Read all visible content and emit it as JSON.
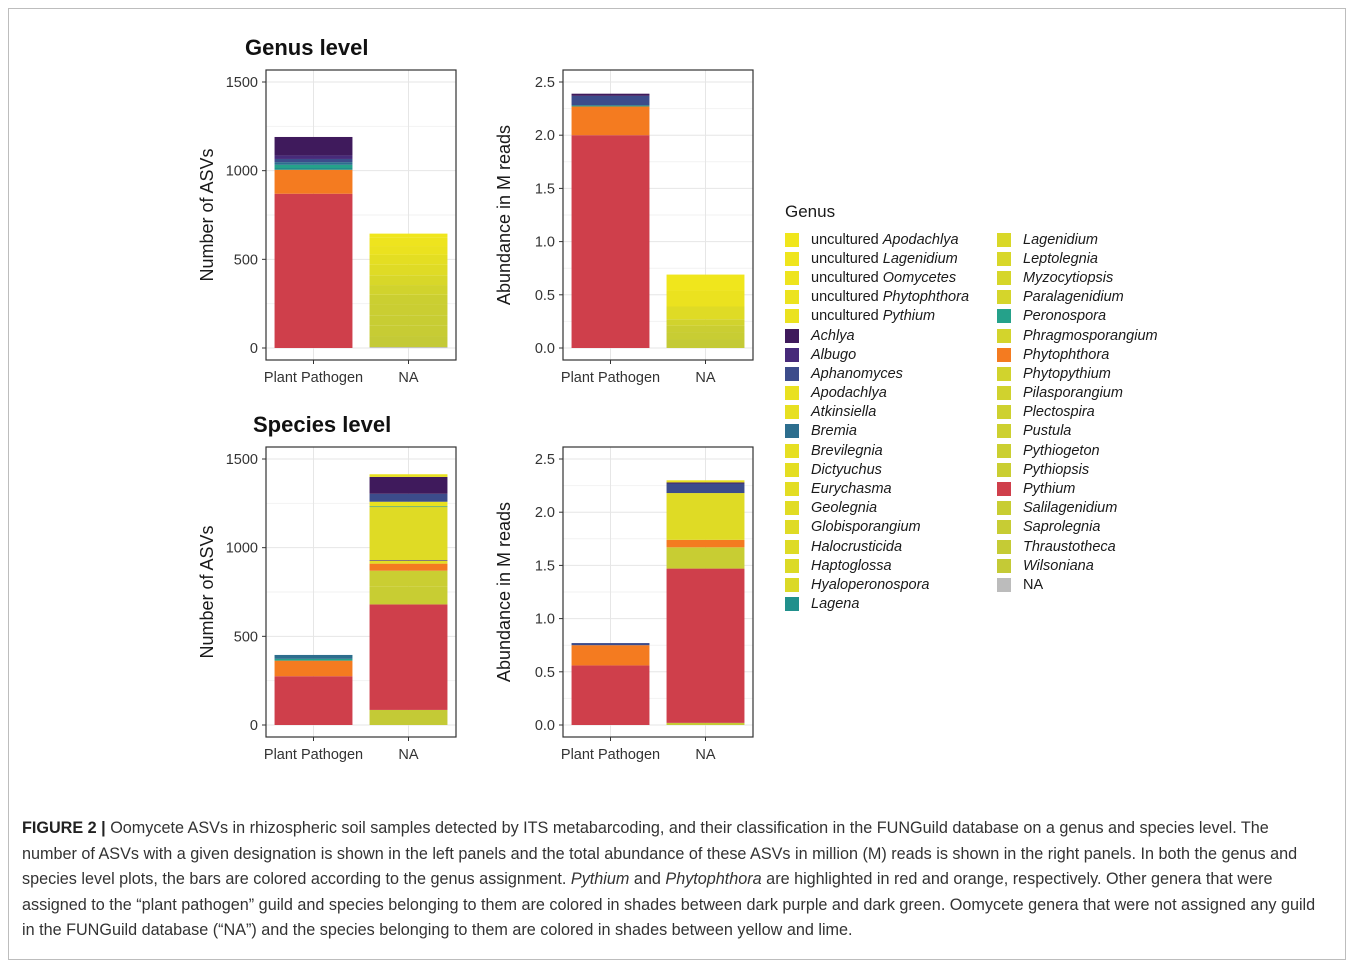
{
  "panels_titles": {
    "genus": "Genus level",
    "species": "Species level"
  },
  "colors": {
    "uncultured Apodachlya": "#f0e61c",
    "uncultured Lagenidium": "#efe51d",
    "uncultured Oomycetes": "#eee41e",
    "uncultured Phytophthora": "#ece31f",
    "uncultured Pythium": "#ebe21f",
    "Achlya": "#3f1a5c",
    "Albugo": "#472a7a",
    "Aphanomyces": "#3c4c8b",
    "Apodachlya": "#e9e120",
    "Atkinsiella": "#e7e021",
    "Bremia": "#2d6e8e",
    "Brevilegnia": "#e6df22",
    "Dictyuchus": "#e4de22",
    "Eurychasma": "#e3dd23",
    "Geolegnia": "#e1dc24",
    "Globisporangium": "#dfdb25",
    "Halocrusticida": "#dedb25",
    "Haptoglossa": "#dcda26",
    "Hyaloperonospora": "#dbd927",
    "Lagena": "#21908c",
    "Lagenidium": "#d9d828",
    "Leptolegnia": "#d8d729",
    "Myzocytiopsis": "#d6d62a",
    "Paralagenidium": "#d5d52b",
    "Peronospora": "#25a18a",
    "Phragmosporangium": "#d3d42c",
    "Phytophthora": "#f47b20",
    "Phytopythium": "#d1d32d",
    "Pilasporangium": "#d0d22e",
    "Plectospira": "#ced12f",
    "Pustula": "#cdd030",
    "Pythiogeton": "#cbcf31",
    "Pythiopsis": "#cace32",
    "Pythium": "#cf3f4b",
    "Salilagenidium": "#c8cd33",
    "Saprolegnia": "#c7cc34",
    "Thraustotheca": "#c5cb35",
    "Wilsoniana": "#c4ca36",
    "NA": "#bcbcbc"
  },
  "legend": {
    "title": "Genus",
    "col1": [
      {
        "key": "uncultured Apodachlya",
        "prefix": "uncultured ",
        "genus": "Apodachlya"
      },
      {
        "key": "uncultured Lagenidium",
        "prefix": "uncultured ",
        "genus": "Lagenidium"
      },
      {
        "key": "uncultured Oomycetes",
        "prefix": "uncultured ",
        "genus": "Oomycetes"
      },
      {
        "key": "uncultured Phytophthora",
        "prefix": "uncultured ",
        "genus": "Phytophthora"
      },
      {
        "key": "uncultured Pythium",
        "prefix": "uncultured ",
        "genus": "Pythium"
      },
      {
        "key": "Achlya",
        "prefix": "",
        "genus": "Achlya"
      },
      {
        "key": "Albugo",
        "prefix": "",
        "genus": "Albugo"
      },
      {
        "key": "Aphanomyces",
        "prefix": "",
        "genus": "Aphanomyces"
      },
      {
        "key": "Apodachlya",
        "prefix": "",
        "genus": "Apodachlya"
      },
      {
        "key": "Atkinsiella",
        "prefix": "",
        "genus": "Atkinsiella"
      },
      {
        "key": "Bremia",
        "prefix": "",
        "genus": "Bremia"
      },
      {
        "key": "Brevilegnia",
        "prefix": "",
        "genus": "Brevilegnia"
      },
      {
        "key": "Dictyuchus",
        "prefix": "",
        "genus": "Dictyuchus"
      },
      {
        "key": "Eurychasma",
        "prefix": "",
        "genus": "Eurychasma"
      },
      {
        "key": "Geolegnia",
        "prefix": "",
        "genus": "Geolegnia"
      },
      {
        "key": "Globisporangium",
        "prefix": "",
        "genus": "Globisporangium"
      },
      {
        "key": "Halocrusticida",
        "prefix": "",
        "genus": "Halocrusticida"
      },
      {
        "key": "Haptoglossa",
        "prefix": "",
        "genus": "Haptoglossa"
      },
      {
        "key": "Hyaloperonospora",
        "prefix": "",
        "genus": "Hyaloperonospora"
      },
      {
        "key": "Lagena",
        "prefix": "",
        "genus": "Lagena"
      }
    ],
    "col2": [
      {
        "key": "Lagenidium",
        "prefix": "",
        "genus": "Lagenidium"
      },
      {
        "key": "Leptolegnia",
        "prefix": "",
        "genus": "Leptolegnia"
      },
      {
        "key": "Myzocytiopsis",
        "prefix": "",
        "genus": "Myzocytiopsis"
      },
      {
        "key": "Paralagenidium",
        "prefix": "",
        "genus": "Paralagenidium"
      },
      {
        "key": "Peronospora",
        "prefix": "",
        "genus": "Peronospora"
      },
      {
        "key": "Phragmosporangium",
        "prefix": "",
        "genus": "Phragmosporangium"
      },
      {
        "key": "Phytophthora",
        "prefix": "",
        "genus": "Phytophthora"
      },
      {
        "key": "Phytopythium",
        "prefix": "",
        "genus": "Phytopythium"
      },
      {
        "key": "Pilasporangium",
        "prefix": "",
        "genus": "Pilasporangium"
      },
      {
        "key": "Plectospira",
        "prefix": "",
        "genus": "Plectospira"
      },
      {
        "key": "Pustula",
        "prefix": "",
        "genus": "Pustula"
      },
      {
        "key": "Pythiogeton",
        "prefix": "",
        "genus": "Pythiogeton"
      },
      {
        "key": "Pythiopsis",
        "prefix": "",
        "genus": "Pythiopsis"
      },
      {
        "key": "Pythium",
        "prefix": "",
        "genus": "Pythium"
      },
      {
        "key": "Salilagenidium",
        "prefix": "",
        "genus": "Salilagenidium"
      },
      {
        "key": "Saprolegnia",
        "prefix": "",
        "genus": "Saprolegnia"
      },
      {
        "key": "Thraustotheca",
        "prefix": "",
        "genus": "Thraustotheca"
      },
      {
        "key": "Wilsoniana",
        "prefix": "",
        "genus": "Wilsoniana"
      },
      {
        "key": "NA",
        "prefix": "NA",
        "genus": ""
      }
    ]
  },
  "chart_data": [
    {
      "id": "genus-asv",
      "type": "bar",
      "stacked": true,
      "title": "Genus level",
      "ylabel": "Number of ASVs",
      "ylim": [
        0,
        1500
      ],
      "yticks": [
        0,
        500,
        1000,
        1500
      ],
      "categories": [
        "Plant Pathogen",
        "NA"
      ],
      "stacks": [
        [
          {
            "genus": "Pythium",
            "value": 870
          },
          {
            "genus": "Phytophthora",
            "value": 135
          },
          {
            "genus": "Lagena",
            "value": 10
          },
          {
            "genus": "Peronospora",
            "value": 18
          },
          {
            "genus": "Bremia",
            "value": 15
          },
          {
            "genus": "Aphanomyces",
            "value": 18
          },
          {
            "genus": "Albugo",
            "value": 20
          },
          {
            "genus": "Achlya",
            "value": 104
          }
        ],
        [
          {
            "genus": "NA",
            "value": 5
          },
          {
            "genus": "Wilsoniana",
            "value": 60
          },
          {
            "genus": "Saprolegnia",
            "value": 60
          },
          {
            "genus": "Salilagenidium",
            "value": 60
          },
          {
            "genus": "Pythiopsis",
            "value": 60
          },
          {
            "genus": "Pythiogeton",
            "value": 55
          },
          {
            "genus": "Phytopythium",
            "value": 55
          },
          {
            "genus": "Leptolegnia",
            "value": 55
          },
          {
            "genus": "Globisporangium",
            "value": 60
          },
          {
            "genus": "Dictyuchus",
            "value": 55
          },
          {
            "genus": "uncultured Pythium",
            "value": 50
          },
          {
            "genus": "uncultured Oomycetes",
            "value": 50
          },
          {
            "genus": "uncultured Apodachlya",
            "value": 20
          }
        ]
      ]
    },
    {
      "id": "genus-abund",
      "type": "bar",
      "stacked": true,
      "title": "",
      "ylabel": "Abundance in M reads",
      "ylim": [
        0,
        2.5
      ],
      "yticks": [
        0.0,
        0.5,
        1.0,
        1.5,
        2.0,
        2.5
      ],
      "categories": [
        "Plant Pathogen",
        "NA"
      ],
      "stacks": [
        [
          {
            "genus": "Pythium",
            "value": 2.0
          },
          {
            "genus": "Phytophthora",
            "value": 0.27
          },
          {
            "genus": "Peronospora",
            "value": 0.01
          },
          {
            "genus": "Aphanomyces",
            "value": 0.09
          },
          {
            "genus": "Achlya",
            "value": 0.02
          }
        ],
        [
          {
            "genus": "Wilsoniana",
            "value": 0.08
          },
          {
            "genus": "Salilagenidium",
            "value": 0.07
          },
          {
            "genus": "Pythiopsis",
            "value": 0.06
          },
          {
            "genus": "Phytopythium",
            "value": 0.06
          },
          {
            "genus": "Globisporangium",
            "value": 0.12
          },
          {
            "genus": "uncultured Pythium",
            "value": 0.15
          },
          {
            "genus": "uncultured Apodachlya",
            "value": 0.15
          }
        ]
      ]
    },
    {
      "id": "species-asv",
      "type": "bar",
      "stacked": true,
      "title": "Species level",
      "ylabel": "Number of ASVs",
      "ylim": [
        0,
        1500
      ],
      "yticks": [
        0,
        500,
        1000,
        1500
      ],
      "categories": [
        "Plant Pathogen",
        "NA"
      ],
      "stacks": [
        [
          {
            "genus": "Pythium",
            "value": 275
          },
          {
            "genus": "Phytophthora",
            "value": 88
          },
          {
            "genus": "Peronospora",
            "value": 10
          },
          {
            "genus": "Bremia",
            "value": 22
          }
        ],
        [
          {
            "genus": "Wilsoniana",
            "value": 85
          },
          {
            "genus": "Pythium",
            "value": 595
          },
          {
            "genus": "Salilagenidium",
            "value": 100
          },
          {
            "genus": "Pythiopsis",
            "value": 90
          },
          {
            "genus": "Phytophthora",
            "value": 40
          },
          {
            "genus": "Dictyuchus",
            "value": 15
          },
          {
            "genus": "Albugo",
            "value": 4
          },
          {
            "genus": "Globisporangium",
            "value": 300
          },
          {
            "genus": "Lagena",
            "value": 4
          },
          {
            "genus": "Apodachlya",
            "value": 26
          },
          {
            "genus": "Aphanomyces",
            "value": 45
          },
          {
            "genus": "Achlya",
            "value": 95
          },
          {
            "genus": "Atkinsiella",
            "value": 15
          }
        ]
      ]
    },
    {
      "id": "species-abund",
      "type": "bar",
      "stacked": true,
      "title": "",
      "ylabel": "Abundance in M reads",
      "ylim": [
        0,
        2.5
      ],
      "yticks": [
        0.0,
        0.5,
        1.0,
        1.5,
        2.0,
        2.5
      ],
      "categories": [
        "Plant Pathogen",
        "NA"
      ],
      "stacks": [
        [
          {
            "genus": "Pythium",
            "value": 0.56
          },
          {
            "genus": "Phytophthora",
            "value": 0.19
          },
          {
            "genus": "Aphanomyces",
            "value": 0.02
          }
        ],
        [
          {
            "genus": "Wilsoniana",
            "value": 0.02
          },
          {
            "genus": "Pythium",
            "value": 1.45
          },
          {
            "genus": "Salilagenidium",
            "value": 0.2
          },
          {
            "genus": "Phytophthora",
            "value": 0.07
          },
          {
            "genus": "Globisporangium",
            "value": 0.44
          },
          {
            "genus": "Aphanomyces",
            "value": 0.09
          },
          {
            "genus": "Achlya",
            "value": 0.01
          },
          {
            "genus": "Atkinsiella",
            "value": 0.02
          }
        ]
      ]
    }
  ],
  "caption": {
    "label": "FIGURE 2",
    "sep": " | ",
    "part1": " Oomycete ASVs in rhizospheric soil samples detected by ITS metabarcoding, and their classification in the FUNGuild database on a genus and species level. The number of ASVs with a given designation is shown in the left panels and the total abundance of these ASVs in million (M) reads is shown in the right panels. In both the genus and species level plots, the bars are colored according to the genus assignment. ",
    "it1": "Pythium",
    "and": " and ",
    "it2": "Phytophthora",
    "part2": " are highlighted in red and orange, respectively. Other genera that were assigned to the “plant pathogen” guild and species belonging to them are colored in shades between dark purple and dark green. Oomycete genera that were not assigned any guild in the FUNGuild database (“NA”) and the species belonging to them are colored in shades between yellow and lime."
  }
}
